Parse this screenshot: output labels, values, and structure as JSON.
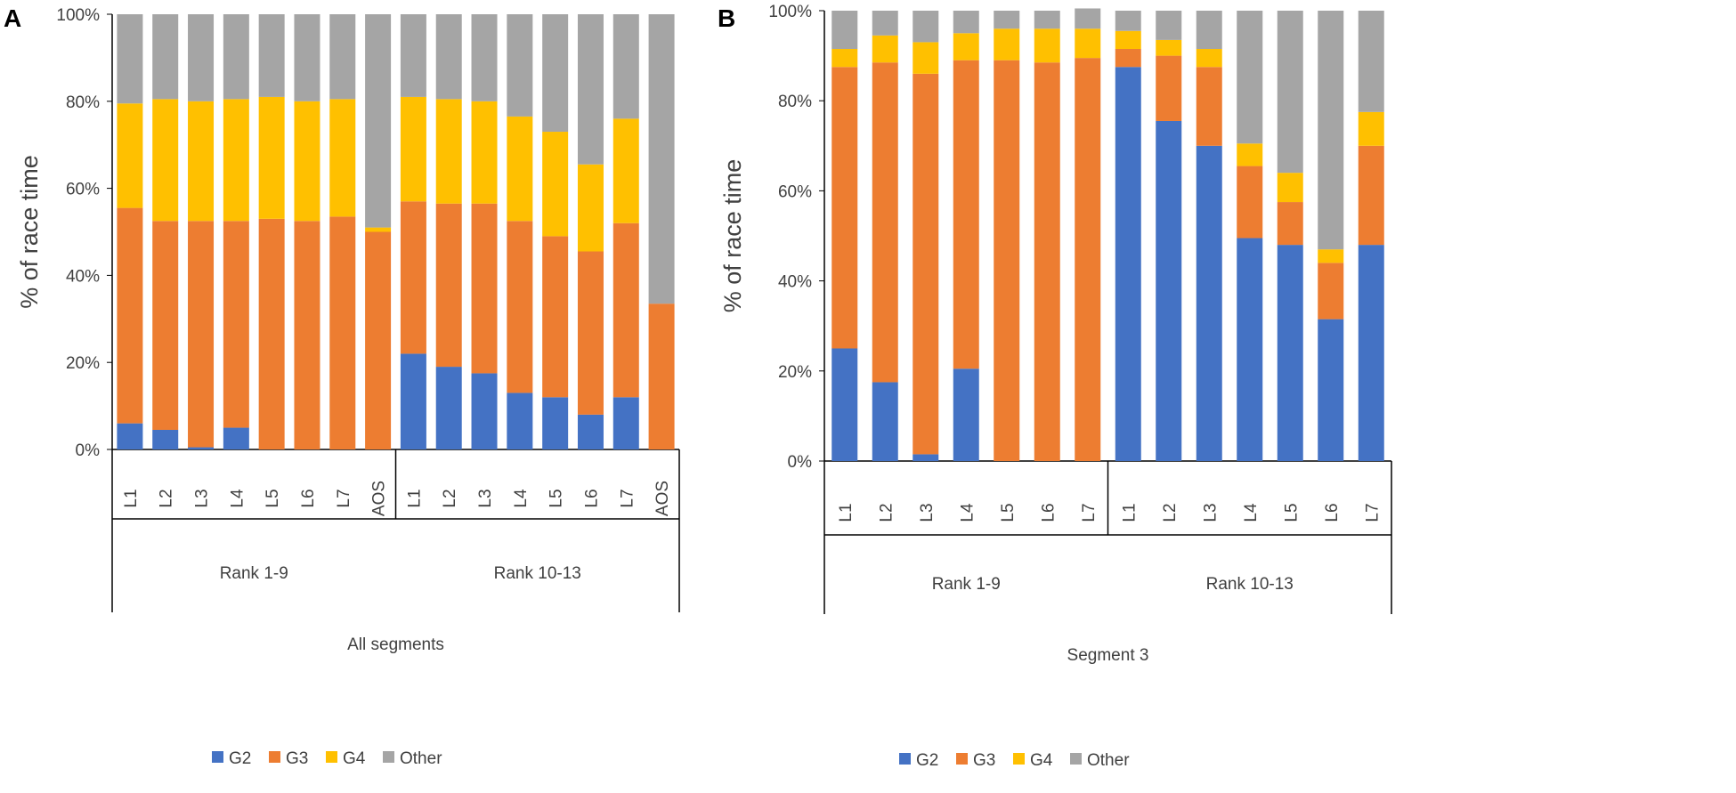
{
  "colors": {
    "G2": "#4472c4",
    "G3": "#ed7d31",
    "G4": "#ffc000",
    "Other": "#a5a5a5"
  },
  "chart_data": [
    {
      "type": "bar",
      "stacked": true,
      "panel_label": "A",
      "ylabel": "% of race time",
      "ylim": [
        0,
        100
      ],
      "yticks": [
        "0%",
        "20%",
        "40%",
        "60%",
        "80%",
        "100%"
      ],
      "groups": [
        {
          "name": "Rank 1-9",
          "categories": [
            "L1",
            "L2",
            "L3",
            "L4",
            "L5",
            "L6",
            "L7",
            "AOS"
          ]
        },
        {
          "name": "Rank 10-13",
          "categories": [
            "L1",
            "L2",
            "L3",
            "L4",
            "L5",
            "L6",
            "L7",
            "AOS"
          ]
        }
      ],
      "segment_label": "All segments",
      "series": [
        {
          "name": "G2",
          "values": [
            6,
            4.5,
            0.5,
            5,
            0,
            0,
            0,
            0,
            22,
            19,
            17.5,
            13,
            12,
            8,
            12,
            0
          ]
        },
        {
          "name": "G3",
          "values": [
            49.5,
            48,
            52,
            47.5,
            53,
            52.5,
            53.5,
            50,
            35,
            37.5,
            39,
            39.5,
            37,
            37.5,
            40,
            33.5
          ]
        },
        {
          "name": "G4",
          "values": [
            24,
            28,
            27.5,
            28,
            28,
            27.5,
            27,
            1,
            24,
            24,
            23.5,
            24,
            24,
            20,
            24,
            0
          ]
        },
        {
          "name": "Other",
          "values": [
            20.5,
            19.5,
            20,
            19.5,
            19,
            20,
            19.5,
            49,
            19,
            19.5,
            20,
            23.5,
            27,
            34.5,
            24,
            66.5
          ]
        }
      ],
      "legend": [
        "G2",
        "G3",
        "G4",
        "Other"
      ]
    },
    {
      "type": "bar",
      "stacked": true,
      "panel_label": "B",
      "ylabel": "% of race time",
      "ylim": [
        0,
        100
      ],
      "yticks": [
        "0%",
        "20%",
        "40%",
        "60%",
        "80%",
        "100%"
      ],
      "groups": [
        {
          "name": "Rank 1-9",
          "categories": [
            "L1",
            "L2",
            "L3",
            "L4",
            "L5",
            "L6",
            "L7"
          ]
        },
        {
          "name": "Rank 10-13",
          "categories": [
            "L1",
            "L2",
            "L3",
            "L4",
            "L5",
            "L6",
            "L7"
          ]
        }
      ],
      "segment_label": "Segment 3",
      "series": [
        {
          "name": "G2",
          "values": [
            25,
            17.5,
            1.5,
            20.5,
            0,
            0,
            0,
            87.5,
            75.5,
            70,
            49.5,
            48,
            31.5,
            48
          ]
        },
        {
          "name": "G3",
          "values": [
            62.5,
            71,
            84.5,
            68.5,
            89,
            88.5,
            89.5,
            4,
            14.5,
            17.5,
            16,
            9.5,
            12.5,
            22
          ]
        },
        {
          "name": "G4",
          "values": [
            4,
            6,
            7,
            6,
            7,
            7.5,
            6.5,
            4,
            3.5,
            4,
            5,
            6.5,
            3,
            7.5
          ]
        },
        {
          "name": "Other",
          "values": [
            8.5,
            5.5,
            7,
            5,
            4,
            4,
            4.5,
            4.5,
            6.5,
            8.5,
            29.5,
            36,
            53,
            22.5
          ]
        }
      ],
      "legend": [
        "G2",
        "G3",
        "G4",
        "Other"
      ]
    }
  ]
}
